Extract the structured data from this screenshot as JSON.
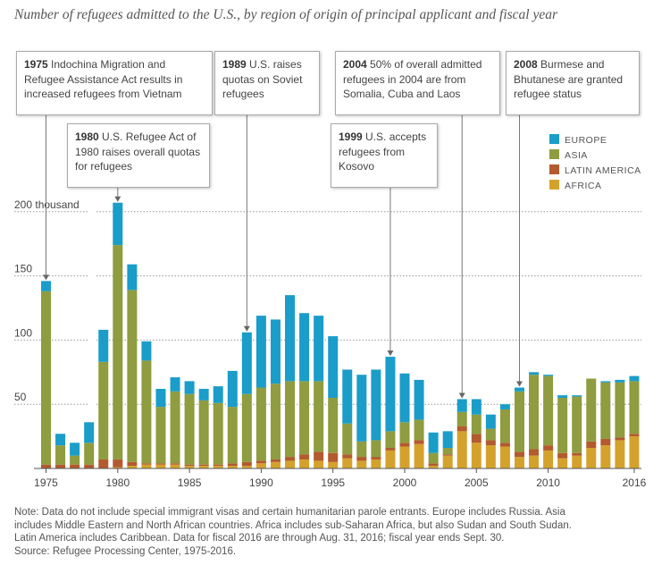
{
  "title": "Number of refugees admitted to the U.S., by region of origin of principal applicant and fiscal year",
  "chart_data": {
    "type": "bar",
    "stacked": true,
    "categories": [
      1975,
      1976,
      1977,
      1978,
      1979,
      1980,
      1981,
      1982,
      1983,
      1984,
      1985,
      1986,
      1987,
      1988,
      1989,
      1990,
      1991,
      1992,
      1993,
      1994,
      1995,
      1996,
      1997,
      1998,
      1999,
      2000,
      2001,
      2002,
      2003,
      2004,
      2005,
      2006,
      2007,
      2008,
      2009,
      2010,
      2011,
      2012,
      2013,
      2014,
      2015,
      2016
    ],
    "series": [
      {
        "name": "AFRICA",
        "color": "#d4a22c",
        "values": [
          0,
          0,
          0,
          0,
          0,
          1,
          2,
          3,
          3,
          3,
          2,
          2,
          2,
          2,
          2,
          4,
          5,
          6,
          7,
          6,
          5,
          8,
          6,
          7,
          14,
          17,
          19,
          2,
          10,
          29,
          20,
          18,
          17,
          9,
          10,
          14,
          8,
          10,
          16,
          18,
          22,
          25
        ]
      },
      {
        "name": "LATIN AMERICA",
        "color": "#b35a2e",
        "values": [
          3,
          3,
          3,
          3,
          7,
          6,
          3,
          1,
          1,
          1,
          1,
          1,
          1,
          2,
          3,
          2,
          2,
          3,
          4,
          7,
          7,
          3,
          3,
          2,
          2,
          3,
          3,
          2,
          1,
          4,
          7,
          4,
          3,
          4,
          5,
          4,
          4,
          2,
          5,
          5,
          2,
          2
        ]
      },
      {
        "name": "ASIA",
        "color": "#8f9c3f",
        "values": [
          135,
          15,
          7,
          17,
          76,
          167,
          134,
          80,
          44,
          56,
          55,
          50,
          48,
          44,
          53,
          57,
          59,
          59,
          57,
          55,
          43,
          24,
          12,
          13,
          13,
          16,
          16,
          8,
          5,
          11,
          15,
          9,
          26,
          47,
          58,
          54,
          43,
          44,
          49,
          44,
          43,
          41
        ]
      },
      {
        "name": "EUROPE",
        "color": "#1a9dc9",
        "values": [
          8,
          9,
          10,
          16,
          25,
          33,
          20,
          15,
          14,
          11,
          10,
          9,
          13,
          28,
          48,
          56,
          50,
          67,
          53,
          51,
          48,
          42,
          52,
          55,
          58,
          38,
          31,
          16,
          13,
          10,
          12,
          11,
          4,
          3,
          2,
          1,
          2,
          1,
          0,
          1,
          2,
          4
        ]
      }
    ],
    "ylim": [
      0,
      205
    ],
    "yticks": [
      50,
      100,
      150,
      200
    ],
    "ytick_labels": [
      "50",
      "100",
      "150",
      "200 thousand"
    ],
    "xticks": [
      1975,
      1980,
      1985,
      1990,
      1995,
      2000,
      2005,
      2010,
      2016
    ],
    "gridlines": true,
    "legend_position": "top-right",
    "annotations": [
      {
        "year": 1975,
        "bold": "1975",
        "text": "Indochina Migration and Refugee Assistance Act results in increased refugees from Vietnam"
      },
      {
        "year": 1980,
        "bold": "1980",
        "text": "U.S. Refugee Act of 1980 raises overall quotas for refugees"
      },
      {
        "year": 1989,
        "bold": "1989",
        "text": "U.S. raises quotas on Soviet refugees"
      },
      {
        "year": 1999,
        "bold": "1999",
        "text": "U.S. accepts refugees from Kosovo"
      },
      {
        "year": 2004,
        "bold": "2004",
        "text": "50% of overall admitted refugees in 2004 are from Somalia, Cuba and Laos"
      },
      {
        "year": 2008,
        "bold": "2008",
        "text": "Burmese and Bhutanese are granted refugee status"
      }
    ]
  },
  "legend": {
    "europe": "EUROPE",
    "asia": "ASIA",
    "latin_america": "LATIN AMERICA",
    "africa": "AFRICA"
  },
  "note": {
    "line1": "Note: Data do not include special immigrant visas and certain humanitarian parole entrants. Europe includes Russia. Asia",
    "line2": "includes Middle Eastern and North African countries. Africa includes sub-Saharan Africa, but also Sudan and South Sudan.",
    "line3": "Latin America includes Caribbean. Data for fiscal 2016 are through Aug. 31, 2016; fiscal year ends Sept. 30.",
    "source": "Source: Refugee Processing Center, 1975-2016."
  }
}
